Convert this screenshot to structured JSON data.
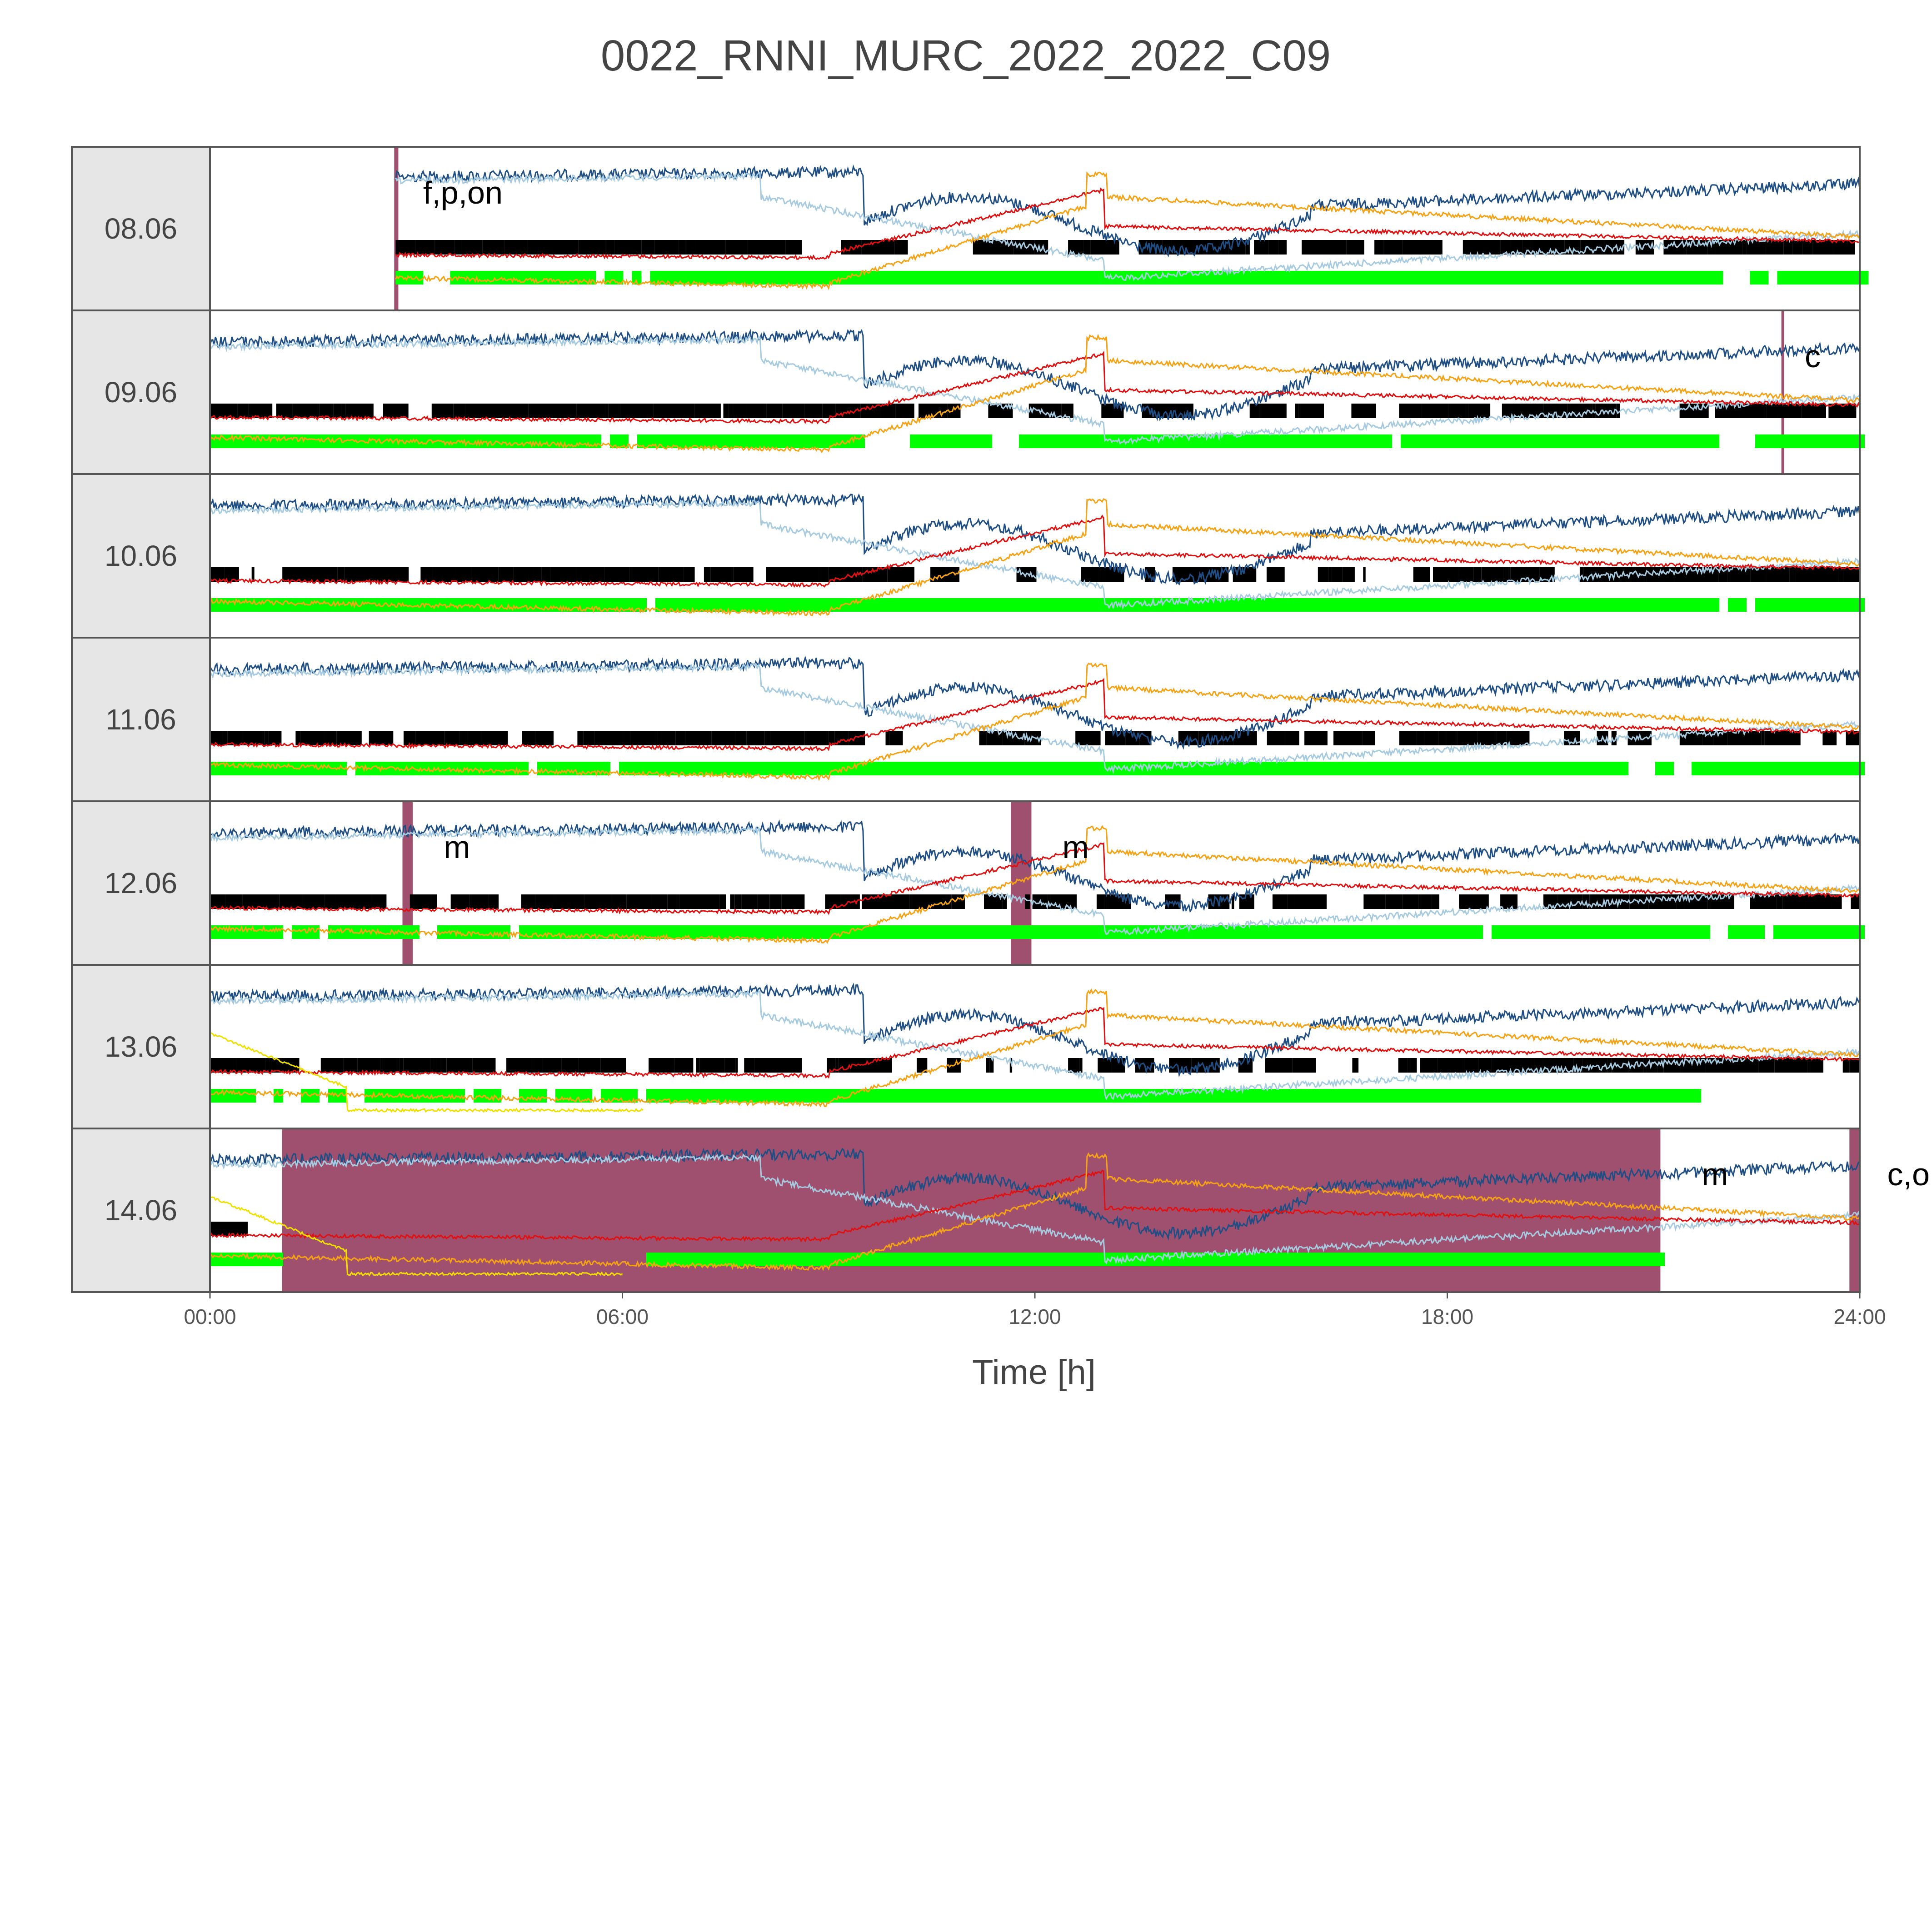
{
  "chart_data": {
    "type": "line",
    "title": "0022_RNNI_MURC_2022_2022_C09",
    "xlabel": "Time [h]",
    "ylabel": "",
    "x_ticks": [
      "00:00",
      "06:00",
      "12:00",
      "18:00",
      "24:00"
    ],
    "x_range_hours": [
      0,
      24
    ],
    "grid": false,
    "legend": "none",
    "colors": {
      "dark_blue": "#1f4e85",
      "light_blue": "#a6cbe0",
      "red": "#e01010",
      "orange": "#f5a214",
      "yellow": "#f0e000",
      "black_bar": "#000000",
      "green_bar": "#00ff00",
      "shade": "#a0506f",
      "strip_bg": "#e6e6e6"
    },
    "days": [
      {
        "label": "08.06",
        "data_start": 2.7,
        "data_end": 24,
        "shades": [
          [
            2.68,
            2.74
          ]
        ],
        "annotations": [
          {
            "text": "f,p,on",
            "x": 3.1
          }
        ],
        "green_gaps": [
          [
            3.0,
            3.4
          ],
          [
            5.6,
            5.7
          ],
          [
            5.95,
            6.05
          ],
          [
            6.2,
            6.35
          ],
          [
            21.9,
            22.3
          ],
          [
            22.45,
            22.5
          ],
          [
            22.65,
            22.75
          ]
        ],
        "yellow": false
      },
      {
        "label": "09.06",
        "data_start": 0,
        "data_end": 24,
        "shades": [
          [
            22.86,
            22.9
          ]
        ],
        "annotations": [
          {
            "text": "c",
            "x": 23.2
          }
        ],
        "green_gaps": [
          [
            5.6,
            5.7
          ],
          [
            6.05,
            6.2
          ],
          [
            9.5,
            10.1
          ],
          [
            11.3,
            11.7
          ],
          [
            17.1,
            17.2
          ],
          [
            21.85,
            22.4
          ],
          [
            22.9,
            23.0
          ]
        ],
        "yellow": false
      },
      {
        "label": "10.06",
        "data_start": 0,
        "data_end": 24,
        "shades": [],
        "annotations": [],
        "green_gaps": [
          [
            0.45,
            0.5
          ],
          [
            5.45,
            5.55
          ],
          [
            6.25,
            6.35
          ],
          [
            21.85,
            22.0
          ],
          [
            22.25,
            22.35
          ],
          [
            23.3,
            23.4
          ]
        ],
        "yellow": false
      },
      {
        "label": "11.06",
        "data_start": 0,
        "data_end": 24,
        "shades": [],
        "annotations": [],
        "green_gaps": [
          [
            0.6,
            0.65
          ],
          [
            1.35,
            1.45
          ],
          [
            1.95,
            2.05
          ],
          [
            4.55,
            4.65
          ],
          [
            5.8,
            5.95
          ],
          [
            20.6,
            21.0
          ],
          [
            21.2,
            21.5
          ]
        ],
        "yellow": false
      },
      {
        "label": "12.06",
        "data_start": 0,
        "data_end": 24,
        "shades": [
          [
            2.8,
            2.95
          ],
          [
            11.65,
            11.95
          ]
        ],
        "annotations": [
          {
            "text": "m",
            "x": 3.4
          },
          {
            "text": "m",
            "x": 12.4
          }
        ],
        "green_gaps": [
          [
            0.55,
            0.6
          ],
          [
            1.05,
            1.15
          ],
          [
            1.55,
            1.65
          ],
          [
            2.95,
            3.3
          ],
          [
            4.3,
            4.45
          ],
          [
            18.5,
            18.6
          ],
          [
            20.1,
            20.2
          ],
          [
            21.8,
            22.0
          ],
          [
            22.6,
            22.7
          ],
          [
            22.9,
            23.0
          ]
        ],
        "yellow": false
      },
      {
        "label": "13.06",
        "data_start": 0,
        "data_end": 24,
        "shades": [],
        "annotations": [],
        "green_gaps": [
          [
            0.6,
            0.8
          ],
          [
            1.0,
            1.2
          ],
          [
            1.5,
            1.6
          ],
          [
            1.9,
            2.2
          ],
          [
            2.6,
            2.6
          ],
          [
            3.6,
            3.8
          ],
          [
            4.1,
            4.4
          ],
          [
            4.8,
            5.0
          ],
          [
            5.5,
            5.6
          ],
          [
            6.1,
            6.3
          ],
          [
            21.6,
            24.0
          ]
        ],
        "yellow": true
      },
      {
        "label": "14.06",
        "data_start": 0,
        "data_end": 24,
        "shades": [
          [
            1.05,
            21.1
          ],
          [
            23.85,
            24.0
          ]
        ],
        "annotations": [
          {
            "text": "m",
            "x": 21.7
          },
          {
            "text": "c,o",
            "x": 24.4
          }
        ],
        "green_gaps": [
          [
            1.05,
            6.25
          ],
          [
            21.1,
            24.0
          ]
        ],
        "yellow": true
      }
    ]
  }
}
